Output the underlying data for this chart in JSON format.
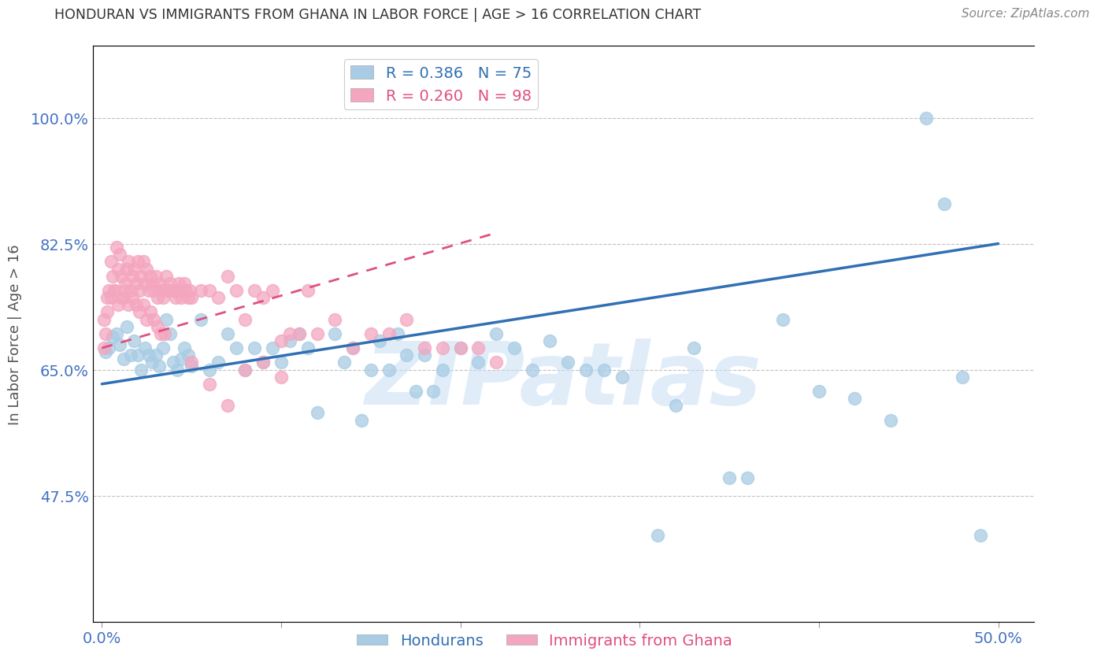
{
  "title": "HONDURAN VS IMMIGRANTS FROM GHANA IN LABOR FORCE | AGE > 16 CORRELATION CHART",
  "source": "Source: ZipAtlas.com",
  "ylabel": "In Labor Force | Age > 16",
  "y_ticks": [
    0.475,
    0.65,
    0.825,
    1.0
  ],
  "y_tick_labels": [
    "47.5%",
    "65.0%",
    "82.5%",
    "100.0%"
  ],
  "xlim": [
    -0.005,
    0.52
  ],
  "ylim": [
    0.3,
    1.1
  ],
  "honduran_R": 0.386,
  "honduran_N": 75,
  "ghana_R": 0.26,
  "ghana_N": 98,
  "blue_color": "#a8cce4",
  "pink_color": "#f4a6bf",
  "blue_line_color": "#3070b3",
  "pink_line_color": "#e05080",
  "watermark": "ZIPatlas",
  "watermark_color": "#c8dff5",
  "legend_label_blue": "Hondurans",
  "legend_label_pink": "Immigrants from Ghana",
  "title_color": "#333333",
  "tick_label_color": "#4472c4",
  "honduran_x": [
    0.002,
    0.004,
    0.006,
    0.008,
    0.01,
    0.012,
    0.014,
    0.016,
    0.018,
    0.02,
    0.022,
    0.024,
    0.026,
    0.028,
    0.03,
    0.032,
    0.034,
    0.036,
    0.038,
    0.04,
    0.042,
    0.044,
    0.046,
    0.048,
    0.05,
    0.055,
    0.06,
    0.065,
    0.07,
    0.075,
    0.08,
    0.085,
    0.09,
    0.095,
    0.1,
    0.105,
    0.11,
    0.115,
    0.12,
    0.13,
    0.135,
    0.14,
    0.145,
    0.15,
    0.155,
    0.16,
    0.165,
    0.17,
    0.175,
    0.18,
    0.185,
    0.19,
    0.2,
    0.21,
    0.22,
    0.23,
    0.24,
    0.25,
    0.26,
    0.27,
    0.28,
    0.29,
    0.31,
    0.32,
    0.33,
    0.35,
    0.36,
    0.38,
    0.4,
    0.42,
    0.44,
    0.46,
    0.47,
    0.48,
    0.49
  ],
  "honduran_y": [
    0.675,
    0.68,
    0.695,
    0.7,
    0.685,
    0.665,
    0.71,
    0.67,
    0.69,
    0.67,
    0.65,
    0.68,
    0.67,
    0.66,
    0.67,
    0.655,
    0.68,
    0.72,
    0.7,
    0.66,
    0.65,
    0.665,
    0.68,
    0.67,
    0.655,
    0.72,
    0.65,
    0.66,
    0.7,
    0.68,
    0.65,
    0.68,
    0.66,
    0.68,
    0.66,
    0.69,
    0.7,
    0.68,
    0.59,
    0.7,
    0.66,
    0.68,
    0.58,
    0.65,
    0.69,
    0.65,
    0.7,
    0.67,
    0.62,
    0.67,
    0.62,
    0.65,
    0.68,
    0.66,
    0.7,
    0.68,
    0.65,
    0.69,
    0.66,
    0.65,
    0.65,
    0.64,
    0.42,
    0.6,
    0.68,
    0.5,
    0.5,
    0.72,
    0.62,
    0.61,
    0.58,
    1.0,
    0.88,
    0.64,
    0.42
  ],
  "ghana_x": [
    0.001,
    0.002,
    0.003,
    0.004,
    0.005,
    0.006,
    0.007,
    0.008,
    0.009,
    0.01,
    0.011,
    0.012,
    0.013,
    0.014,
    0.015,
    0.016,
    0.017,
    0.018,
    0.019,
    0.02,
    0.021,
    0.022,
    0.023,
    0.024,
    0.025,
    0.026,
    0.027,
    0.028,
    0.029,
    0.03,
    0.031,
    0.032,
    0.033,
    0.034,
    0.035,
    0.036,
    0.037,
    0.038,
    0.039,
    0.04,
    0.041,
    0.042,
    0.043,
    0.044,
    0.045,
    0.046,
    0.047,
    0.048,
    0.049,
    0.05,
    0.055,
    0.06,
    0.065,
    0.07,
    0.075,
    0.08,
    0.085,
    0.09,
    0.095,
    0.1,
    0.105,
    0.11,
    0.115,
    0.12,
    0.13,
    0.14,
    0.15,
    0.16,
    0.17,
    0.18,
    0.19,
    0.2,
    0.21,
    0.22,
    0.001,
    0.003,
    0.005,
    0.007,
    0.009,
    0.011,
    0.013,
    0.015,
    0.017,
    0.019,
    0.021,
    0.023,
    0.025,
    0.027,
    0.029,
    0.031,
    0.033,
    0.035,
    0.05,
    0.06,
    0.07,
    0.08,
    0.09,
    0.1
  ],
  "ghana_y": [
    0.68,
    0.7,
    0.75,
    0.76,
    0.8,
    0.78,
    0.76,
    0.82,
    0.79,
    0.81,
    0.78,
    0.75,
    0.77,
    0.79,
    0.8,
    0.76,
    0.78,
    0.79,
    0.77,
    0.8,
    0.76,
    0.78,
    0.8,
    0.77,
    0.79,
    0.76,
    0.78,
    0.77,
    0.76,
    0.78,
    0.75,
    0.77,
    0.76,
    0.75,
    0.76,
    0.78,
    0.76,
    0.77,
    0.76,
    0.76,
    0.75,
    0.76,
    0.77,
    0.75,
    0.76,
    0.77,
    0.76,
    0.75,
    0.76,
    0.75,
    0.76,
    0.76,
    0.75,
    0.78,
    0.76,
    0.72,
    0.76,
    0.75,
    0.76,
    0.69,
    0.7,
    0.7,
    0.76,
    0.7,
    0.72,
    0.68,
    0.7,
    0.7,
    0.72,
    0.68,
    0.68,
    0.68,
    0.68,
    0.66,
    0.72,
    0.73,
    0.75,
    0.76,
    0.74,
    0.75,
    0.76,
    0.74,
    0.75,
    0.74,
    0.73,
    0.74,
    0.72,
    0.73,
    0.72,
    0.71,
    0.7,
    0.7,
    0.66,
    0.63,
    0.6,
    0.65,
    0.66,
    0.64
  ],
  "blue_trend_x0": 0.0,
  "blue_trend_y0": 0.63,
  "blue_trend_x1": 0.5,
  "blue_trend_y1": 0.825,
  "pink_trend_x0": 0.0,
  "pink_trend_y0": 0.68,
  "pink_trend_x1": 0.22,
  "pink_trend_y1": 0.84
}
